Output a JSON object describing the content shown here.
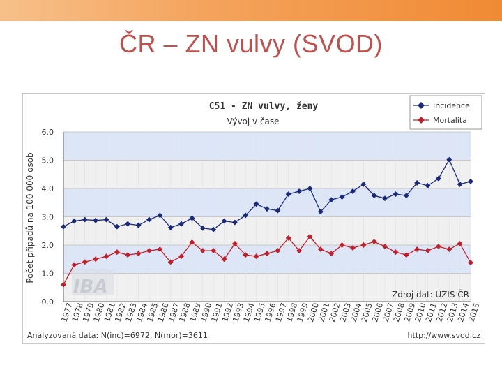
{
  "slide": {
    "title": "ČR – ZN vulvy (SVOD)"
  },
  "chart_data": {
    "type": "line",
    "title": "C51 - ZN vulvy, ženy",
    "subtitle": "Vývoj v čase",
    "ylabel": "Počet případů na 100 000 osob",
    "xlabel": "",
    "ylim": [
      0,
      6
    ],
    "yticks": [
      "0.0",
      "1.0",
      "2.0",
      "3.0",
      "4.0",
      "5.0",
      "6.0"
    ],
    "categories": [
      "1977",
      "1978",
      "1979",
      "1980",
      "1981",
      "1982",
      "1983",
      "1984",
      "1985",
      "1986",
      "1987",
      "1988",
      "1989",
      "1990",
      "1991",
      "1992",
      "1993",
      "1994",
      "1995",
      "1996",
      "1997",
      "1998",
      "1999",
      "2000",
      "2001",
      "2002",
      "2003",
      "2004",
      "2005",
      "2006",
      "2007",
      "2008",
      "2009",
      "2010",
      "2011",
      "2012",
      "2013",
      "2014",
      "2015"
    ],
    "series": [
      {
        "name": "Incidence",
        "color": "#1a2a7a",
        "values": [
          2.65,
          2.85,
          2.9,
          2.87,
          2.9,
          2.65,
          2.75,
          2.7,
          2.9,
          3.05,
          2.62,
          2.75,
          2.95,
          2.6,
          2.55,
          2.85,
          2.8,
          3.05,
          3.45,
          3.28,
          3.22,
          3.8,
          3.9,
          4.0,
          3.18,
          3.6,
          3.7,
          3.9,
          4.15,
          3.75,
          3.65,
          3.8,
          3.75,
          4.2,
          4.1,
          4.35,
          5.02,
          4.15,
          4.25
        ]
      },
      {
        "name": "Mortalita",
        "color": "#c0202a",
        "values": [
          0.6,
          1.3,
          1.4,
          1.5,
          1.6,
          1.75,
          1.65,
          1.7,
          1.8,
          1.85,
          1.4,
          1.6,
          2.1,
          1.8,
          1.8,
          1.5,
          2.05,
          1.65,
          1.6,
          1.7,
          1.8,
          2.25,
          1.8,
          2.3,
          1.85,
          1.7,
          2.0,
          1.9,
          2.0,
          2.12,
          1.95,
          1.75,
          1.65,
          1.85,
          1.8,
          1.95,
          1.85,
          2.05,
          1.38
        ]
      }
    ],
    "legend_position": "top-right",
    "grid": true,
    "background_bands": true,
    "watermark": "IBA",
    "source_note": "Zdroj dat: ÚZIS ČR",
    "footer_left": "Analyzovaná data: N(inc)=6972, N(mor)=3611",
    "footer_right": "http://www.svod.cz"
  }
}
